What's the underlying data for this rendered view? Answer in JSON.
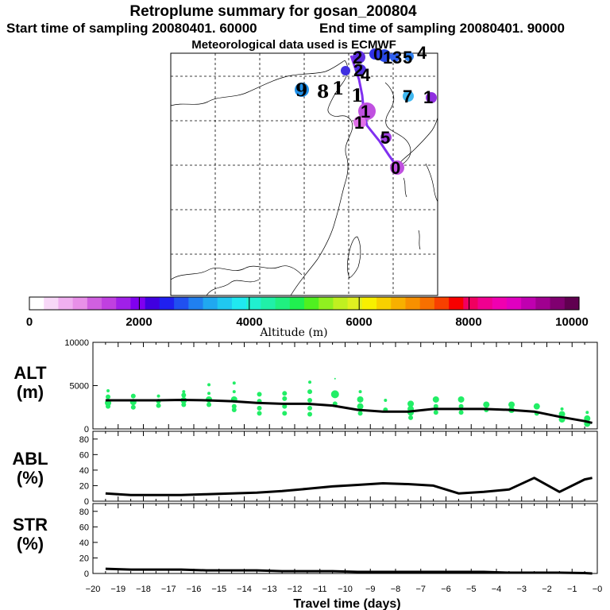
{
  "header": {
    "title": "Retroplume summary for gosan_200804",
    "line2_left": "Start time of sampling 20080401. 60000",
    "line2_right": "End time of sampling 20080401. 90000",
    "line3": "Meteorological data used is ECMWF"
  },
  "colorbar": {
    "ticks": [
      "0",
      "2000",
      "4000",
      "6000",
      "8000",
      "10000"
    ],
    "label": "Altitude  (m)",
    "colors": [
      "#ffffff",
      "#f8d8f8",
      "#f0b0f0",
      "#e890e8",
      "#d060e0",
      "#c040e0",
      "#a020e8",
      "#8000f0",
      "#4000e0",
      "#2020f0",
      "#2050f0",
      "#2080f0",
      "#20a8f0",
      "#20c8f0",
      "#20e8f0",
      "#20f0d0",
      "#20f0a8",
      "#20f080",
      "#20f050",
      "#50f020",
      "#90f020",
      "#c0f020",
      "#e0f020",
      "#f8f000",
      "#f8d000",
      "#f8b000",
      "#f89000",
      "#f87000",
      "#f84000",
      "#f80000",
      "#f00060",
      "#f00090",
      "#f000b0",
      "#e000c0",
      "#c000b0",
      "#a00090",
      "#800070",
      "#600050"
    ]
  },
  "map": {
    "labels": [
      {
        "t": "2",
        "c": "#6030e0"
      },
      {
        "t": "0",
        "c": "#4030e0"
      },
      {
        "t": "1",
        "c": "#3040e8"
      },
      {
        "t": "3",
        "c": "#3050f0"
      },
      {
        "t": "5",
        "c": "#3070f0"
      },
      {
        "t": "4",
        "c": "#30a0f0"
      },
      {
        "t": "2",
        "c": "#7030e0"
      },
      {
        "t": "4",
        "c": "#5030e0"
      },
      {
        "t": "9",
        "c": "#2090e8"
      },
      {
        "t": "8",
        "c": "#20b8f0"
      },
      {
        "t": "1",
        "c": "#000000"
      },
      {
        "t": "1",
        "c": "#000000"
      },
      {
        "t": "7",
        "c": "#30b8f0"
      },
      {
        "t": "1",
        "c": "#9030e0"
      },
      {
        "t": "1",
        "c": "#c050e0"
      },
      {
        "t": "1",
        "c": "#e070e8"
      },
      {
        "t": "5",
        "c": "#a040e0"
      },
      {
        "t": "0",
        "c": "#c050e0"
      }
    ]
  },
  "chart_data": [
    {
      "type": "scatter",
      "panel": "ALT",
      "ylabel": "ALT",
      "yunit": "(m)",
      "ylim": [
        0,
        10000
      ],
      "yticks": [
        "10000",
        "5000",
        "0"
      ],
      "xlim": [
        -20,
        0
      ],
      "line": {
        "x": [
          -19.5,
          -18.5,
          -17.5,
          -16.5,
          -15.5,
          -14.5,
          -13.5,
          -12.5,
          -11.5,
          -10.5,
          -9.5,
          -8.5,
          -7.5,
          -6.5,
          -5.5,
          -4.5,
          -3.5,
          -2.5,
          -1.5,
          -0.5,
          -0.2
        ],
        "y": [
          3300,
          3300,
          3300,
          3350,
          3300,
          3200,
          3000,
          2900,
          2900,
          2700,
          2200,
          2000,
          2000,
          2300,
          2300,
          2300,
          2200,
          2000,
          1400,
          900,
          700
        ]
      },
      "dot_color": "#22ee66",
      "dots": [
        {
          "x": -19.4,
          "y": 3000,
          "r": 4
        },
        {
          "x": -19.4,
          "y": 2600,
          "r": 3
        },
        {
          "x": -19.4,
          "y": 3700,
          "r": 3
        },
        {
          "x": -19.4,
          "y": 4400,
          "r": 2
        },
        {
          "x": -18.4,
          "y": 3100,
          "r": 4
        },
        {
          "x": -18.4,
          "y": 2500,
          "r": 3
        },
        {
          "x": -18.4,
          "y": 3800,
          "r": 3
        },
        {
          "x": -17.4,
          "y": 3200,
          "r": 3
        },
        {
          "x": -17.4,
          "y": 2700,
          "r": 3
        },
        {
          "x": -17.4,
          "y": 3800,
          "r": 2
        },
        {
          "x": -16.4,
          "y": 3300,
          "r": 4
        },
        {
          "x": -16.4,
          "y": 2800,
          "r": 3
        },
        {
          "x": -16.4,
          "y": 3900,
          "r": 3
        },
        {
          "x": -16.4,
          "y": 4300,
          "r": 2
        },
        {
          "x": -15.4,
          "y": 3400,
          "r": 4
        },
        {
          "x": -15.4,
          "y": 2800,
          "r": 3
        },
        {
          "x": -15.4,
          "y": 4100,
          "r": 2
        },
        {
          "x": -15.4,
          "y": 5100,
          "r": 2
        },
        {
          "x": -14.4,
          "y": 3400,
          "r": 4
        },
        {
          "x": -14.4,
          "y": 2600,
          "r": 3
        },
        {
          "x": -14.4,
          "y": 2200,
          "r": 3
        },
        {
          "x": -14.4,
          "y": 4300,
          "r": 2
        },
        {
          "x": -14.4,
          "y": 5300,
          "r": 2
        },
        {
          "x": -13.4,
          "y": 3200,
          "r": 3
        },
        {
          "x": -13.4,
          "y": 2400,
          "r": 3
        },
        {
          "x": -13.4,
          "y": 1800,
          "r": 3
        },
        {
          "x": -13.4,
          "y": 4000,
          "r": 3
        },
        {
          "x": -12.4,
          "y": 3500,
          "r": 3
        },
        {
          "x": -12.4,
          "y": 2600,
          "r": 3
        },
        {
          "x": -12.4,
          "y": 1800,
          "r": 3
        },
        {
          "x": -12.4,
          "y": 4100,
          "r": 3
        },
        {
          "x": -11.4,
          "y": 3300,
          "r": 3
        },
        {
          "x": -11.4,
          "y": 2400,
          "r": 3
        },
        {
          "x": -11.4,
          "y": 1700,
          "r": 3
        },
        {
          "x": -11.4,
          "y": 4300,
          "r": 3
        },
        {
          "x": -11.4,
          "y": 5400,
          "r": 2
        },
        {
          "x": -10.4,
          "y": 4000,
          "r": 5
        },
        {
          "x": -10.4,
          "y": 2900,
          "r": 3
        },
        {
          "x": -10.4,
          "y": 5800,
          "r": 1
        },
        {
          "x": -9.4,
          "y": 3400,
          "r": 4
        },
        {
          "x": -9.4,
          "y": 2600,
          "r": 4
        },
        {
          "x": -9.4,
          "y": 1800,
          "r": 3
        },
        {
          "x": -9.4,
          "y": 4300,
          "r": 2
        },
        {
          "x": -8.4,
          "y": 2200,
          "r": 3
        },
        {
          "x": -8.4,
          "y": 3300,
          "r": 2
        },
        {
          "x": -7.4,
          "y": 2900,
          "r": 4
        },
        {
          "x": -7.4,
          "y": 2300,
          "r": 4
        },
        {
          "x": -7.4,
          "y": 1900,
          "r": 4
        },
        {
          "x": -7.4,
          "y": 1300,
          "r": 3
        },
        {
          "x": -6.4,
          "y": 3400,
          "r": 4
        },
        {
          "x": -6.4,
          "y": 2600,
          "r": 3
        },
        {
          "x": -6.4,
          "y": 1900,
          "r": 3
        },
        {
          "x": -5.4,
          "y": 3400,
          "r": 4
        },
        {
          "x": -5.4,
          "y": 2600,
          "r": 3
        },
        {
          "x": -5.4,
          "y": 1900,
          "r": 3
        },
        {
          "x": -4.4,
          "y": 2800,
          "r": 4
        },
        {
          "x": -4.4,
          "y": 2200,
          "r": 3
        },
        {
          "x": -3.4,
          "y": 2800,
          "r": 4
        },
        {
          "x": -3.4,
          "y": 2200,
          "r": 4
        },
        {
          "x": -2.4,
          "y": 2600,
          "r": 4
        },
        {
          "x": -2.4,
          "y": 1800,
          "r": 3
        },
        {
          "x": -1.4,
          "y": 1700,
          "r": 4
        },
        {
          "x": -1.4,
          "y": 1100,
          "r": 4
        },
        {
          "x": -1.4,
          "y": 2300,
          "r": 2
        },
        {
          "x": -0.4,
          "y": 1200,
          "r": 4
        },
        {
          "x": -0.4,
          "y": 600,
          "r": 4
        },
        {
          "x": -0.4,
          "y": 1900,
          "r": 2
        }
      ]
    },
    {
      "type": "line",
      "panel": "ABL",
      "ylabel": "ABL",
      "yunit": "(%)",
      "ylim": [
        0,
        90
      ],
      "yticks": [
        "80",
        "60",
        "40",
        "20",
        "0"
      ],
      "xlim": [
        -20,
        0
      ],
      "x": [
        -19.5,
        -18.5,
        -17.5,
        -16.5,
        -15.5,
        -14.5,
        -13.5,
        -12.5,
        -11.5,
        -10.5,
        -9.5,
        -8.5,
        -7.5,
        -6.5,
        -5.5,
        -4.5,
        -3.5,
        -2.5,
        -1.5,
        -0.5,
        -0.2
      ],
      "y": [
        10,
        8,
        8,
        8,
        9,
        10,
        11,
        13,
        16,
        19,
        21,
        23,
        22,
        20,
        10,
        12,
        15,
        30,
        12,
        28,
        30
      ]
    },
    {
      "type": "line",
      "panel": "STR",
      "ylabel": "STR",
      "yunit": "(%)",
      "ylim": [
        0,
        90
      ],
      "yticks": [
        "80",
        "60",
        "40",
        "20",
        "0"
      ],
      "xlim": [
        -20,
        0
      ],
      "xlabel": "Travel time (days)",
      "xticks": [
        "−20",
        "−19",
        "−18",
        "−17",
        "−16",
        "−15",
        "−14",
        "−13",
        "−12",
        "−11",
        "−10",
        "−9",
        "−8",
        "−7",
        "−6",
        "−5",
        "−4",
        "−3",
        "−2",
        "−1",
        "−0"
      ],
      "x": [
        -19.5,
        -18.5,
        -17.5,
        -16.5,
        -15.5,
        -14.5,
        -13.5,
        -12.5,
        -11.5,
        -10.5,
        -9.5,
        -8.5,
        -7.5,
        -6.5,
        -5.5,
        -4.5,
        -3.5,
        -2.5,
        -1.5,
        -0.5,
        -0.2
      ],
      "y": [
        6,
        5,
        5,
        5,
        4,
        4,
        4,
        3,
        3,
        3,
        2,
        2,
        2,
        2,
        2,
        2,
        1,
        1,
        1,
        0.5,
        0
      ]
    }
  ]
}
